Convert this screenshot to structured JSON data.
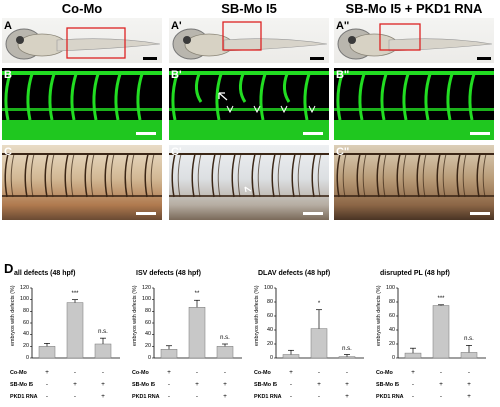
{
  "columns": [
    {
      "title": "Co-Mo"
    },
    {
      "title": "SB-Mo I5"
    },
    {
      "title": "SB-Mo I5 + PKD1 RNA"
    }
  ],
  "panel_labels": {
    "A": [
      "A",
      "A'",
      "A''"
    ],
    "B": [
      "B",
      "B'",
      "B''"
    ],
    "C": [
      "C",
      "C'",
      "C''"
    ],
    "D": "D"
  },
  "chart_data": [
    {
      "type": "bar",
      "title": "all defects (48 hpf)",
      "ylabel": "embryos with defects (%)",
      "yticks": [
        "0",
        "20",
        "40",
        "60",
        "80",
        "100",
        "120"
      ],
      "ylim": [
        0,
        120
      ],
      "values": [
        20,
        95,
        24
      ],
      "errors": [
        5,
        5,
        10
      ],
      "significance": [
        "",
        "***",
        "n.s."
      ]
    },
    {
      "type": "bar",
      "title": "ISV defects (48 hpf)",
      "ylabel": "embryos with defects (%)",
      "yticks": [
        "0",
        "20",
        "40",
        "60",
        "80",
        "100",
        "120"
      ],
      "ylim": [
        0,
        120
      ],
      "values": [
        15,
        87,
        20
      ],
      "errors": [
        6,
        12,
        4
      ],
      "significance": [
        "",
        "**",
        "n.s."
      ]
    },
    {
      "type": "bar",
      "title": "DLAV defects (48 hpf)",
      "ylabel": "embryos with defects (%)",
      "yticks": [
        "0",
        "20",
        "40",
        "60",
        "80",
        "100"
      ],
      "ylim": [
        0,
        100
      ],
      "values": [
        5,
        42,
        2
      ],
      "errors": [
        6,
        27,
        3
      ],
      "significance": [
        "",
        "*",
        "n.s."
      ]
    },
    {
      "type": "bar",
      "title": "disrupted PL (48 hpf)",
      "ylabel": "embryos with defects (%)",
      "yticks": [
        "0",
        "20",
        "40",
        "60",
        "80",
        "100"
      ],
      "ylim": [
        0,
        100
      ],
      "values": [
        7,
        75,
        8
      ],
      "errors": [
        7,
        1,
        10
      ],
      "significance": [
        "",
        "***",
        "n.s."
      ]
    }
  ],
  "conditions": [
    {
      "label": "Co-Mo",
      "marks": [
        "+",
        "-",
        "-"
      ]
    },
    {
      "label": "SB-Mo I5",
      "marks": [
        "-",
        "+",
        "+"
      ]
    },
    {
      "label": "PKD1 RNA",
      "marks": [
        "-",
        "-",
        "+"
      ]
    }
  ],
  "colors": {
    "bar_fill": "#c8c8c8",
    "vessel": "#22dd22",
    "inset_box": "#dd2222"
  }
}
